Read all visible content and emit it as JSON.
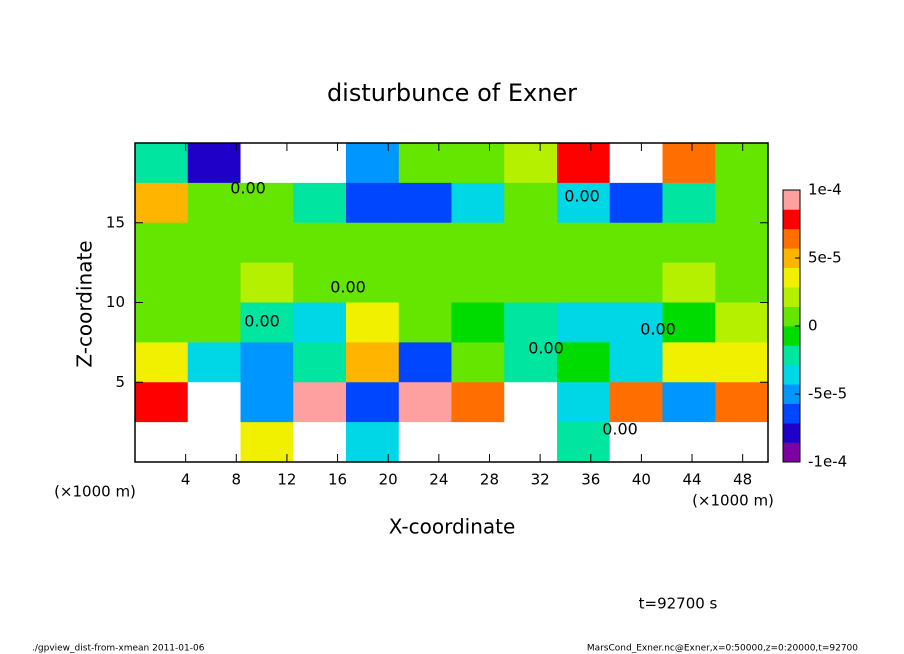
{
  "chart_data": {
    "type": "contour",
    "title": "disturbunce of Exner",
    "x_label": "X-coordinate",
    "y_label": "Z-coordinate",
    "x_unit": "(×1000 m)",
    "xlim": [
      0,
      50
    ],
    "ylim": [
      0,
      20
    ],
    "xticks": [
      4,
      8,
      12,
      16,
      20,
      24,
      28,
      32,
      36,
      40,
      44,
      48
    ],
    "yticks": [
      5,
      10,
      15
    ],
    "x": [
      2.08,
      6.25,
      10.42,
      14.58,
      18.75,
      22.92,
      27.08,
      31.25,
      35.42,
      39.58,
      43.75,
      47.92
    ],
    "y": [
      18.75,
      16.25,
      13.75,
      11.25,
      8.75,
      6.25,
      3.75,
      1.25
    ],
    "z": [
      [
        -2e-05,
        -8e-05,
        -0.00011,
        -0.00011,
        -5e-05,
        0,
        1e-05,
        2e-05,
        8e-05,
        0.00011,
        6e-05,
        1e-05
      ],
      [
        5e-05,
        1e-05,
        0,
        -2e-05,
        -6e-05,
        -7e-05,
        -3e-05,
        1e-05,
        -3e-05,
        -6e-05,
        -2e-05,
        1e-05
      ],
      [
        1e-05,
        1e-05,
        1e-05,
        1e-05,
        5e-06,
        0,
        0,
        0,
        5e-06,
        5e-06,
        1e-05,
        1e-05
      ],
      [
        1e-05,
        1e-05,
        2e-05,
        1e-05,
        0,
        5e-06,
        1e-05,
        0,
        0,
        5e-06,
        2e-05,
        1e-05
      ],
      [
        1e-05,
        1e-05,
        -2e-05,
        -4e-05,
        3e-05,
        0,
        -1e-05,
        -2e-05,
        -3e-05,
        -4e-05,
        -1e-05,
        2e-05
      ],
      [
        3e-05,
        -3e-05,
        -5e-05,
        -2e-05,
        5e-05,
        -6e-05,
        0,
        -2e-05,
        -1e-05,
        -3e-05,
        3e-05,
        4e-05
      ],
      [
        8e-05,
        0.00012,
        -5e-05,
        0.0001,
        -6e-05,
        9e-05,
        7e-05,
        0.00011,
        -4e-05,
        6e-05,
        -5e-05,
        7e-05
      ],
      [
        0.00012,
        0.00012,
        4e-05,
        0.00012,
        -3e-05,
        0.00012,
        0.00012,
        0.00012,
        -2e-05,
        0.00012,
        0.00011,
        0.00012
      ]
    ],
    "clim": [
      -0.0001,
      0.0001
    ],
    "colorbar_ticks": [
      {
        "value": 0.0001,
        "label": "1e-4"
      },
      {
        "value": 5e-05,
        "label": "5e-5"
      },
      0,
      {
        "value": -5e-05,
        "label": "-5e-5"
      },
      {
        "value": -0.0001,
        "label": "-1e-4"
      }
    ],
    "colors": [
      "#7f00a0",
      "#1e00c8",
      "#0046ff",
      "#0096ff",
      "#00d7e6",
      "#00e6a0",
      "#00dc00",
      "#64e600",
      "#b4f000",
      "#f0f000",
      "#ffb400",
      "#ff6e00",
      "#ff0000",
      "#ffa0a0"
    ],
    "annotations": [
      "0.00",
      "0.00",
      "0.00",
      "0.00",
      "0.00",
      "0.00",
      "0.00"
    ],
    "time_label": "t=92700 s",
    "footer_left": "./gpview_dist-from-xmean  2011-01-06",
    "footer_right": "MarsCond_Exner.nc@Exner,x=0:50000,z=0:20000,t=92700"
  }
}
